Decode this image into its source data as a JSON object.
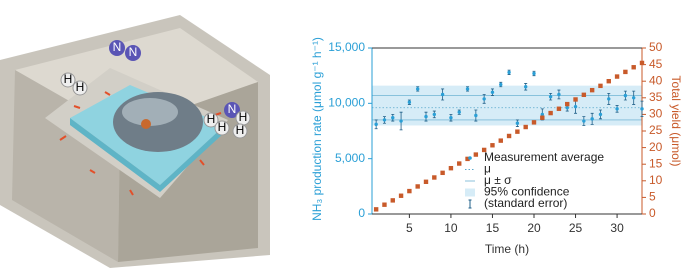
{
  "illustration": {
    "n2_labels": [
      "N",
      "N"
    ],
    "h2_left_labels": [
      "H",
      "H"
    ],
    "h2_right_labels": [
      "H",
      "H"
    ],
    "nh3_labels": [
      "N",
      "H",
      "H"
    ]
  },
  "chart_data": {
    "type": "scatter",
    "y_label": "NH₃ production rate (μmol g⁻¹ h⁻¹)",
    "y2_label": "Total yield (μmol)",
    "x_label": "Time (h)",
    "x": [
      1,
      2,
      3,
      4,
      5,
      6,
      7,
      8,
      9,
      10,
      11,
      12,
      13,
      14,
      15,
      16,
      17,
      18,
      19,
      20,
      21,
      22,
      23,
      24,
      25,
      26,
      27,
      28,
      29,
      30,
      31,
      32,
      33
    ],
    "xlim": [
      0.5,
      33
    ],
    "xticks": [
      5,
      10,
      15,
      20,
      25,
      30
    ],
    "ylim": [
      0,
      15000
    ],
    "yticks": [
      0,
      {
        "value": 5000,
        "label": "5,000"
      },
      {
        "value": 10000,
        "label": "10,000"
      },
      {
        "value": 15000,
        "label": "15,000"
      }
    ],
    "y2lim": [
      0,
      50
    ],
    "y2ticks": [
      0,
      5,
      10,
      15,
      20,
      25,
      30,
      35,
      40,
      45,
      50
    ],
    "series": [
      {
        "name": "Measurement average",
        "color": "#2a9fd6",
        "values": [
          8100,
          8500,
          8700,
          8400,
          10100,
          11300,
          8800,
          9000,
          10800,
          8700,
          9200,
          11300,
          8900,
          10400,
          11000,
          11700,
          12800,
          8200,
          11500,
          12700,
          9000,
          10600,
          10800,
          9600,
          9700,
          8400,
          8600,
          9000,
          10400,
          9500,
          10700,
          10500,
          9500
        ],
        "errors": [
          400,
          300,
          300,
          800,
          200,
          200,
          400,
          300,
          500,
          300,
          200,
          200,
          500,
          400,
          300,
          200,
          200,
          300,
          300,
          200,
          500,
          300,
          400,
          300,
          600,
          400,
          500,
          400,
          500,
          300,
          400,
          600,
          700
        ],
        "error_label": "(standard error)"
      },
      {
        "axis": "y2",
        "color": "#c85a2a",
        "values": [
          1.4,
          2.8,
          4.1,
          5.5,
          6.9,
          8.3,
          9.7,
          11.0,
          12.4,
          13.8,
          15.2,
          16.6,
          17.9,
          19.3,
          20.7,
          22.1,
          23.5,
          24.8,
          26.2,
          27.6,
          29.0,
          30.4,
          31.7,
          33.1,
          34.5,
          35.9,
          37.3,
          38.6,
          40.0,
          41.4,
          42.8,
          44.2,
          45.5
        ]
      }
    ],
    "mu": {
      "label": "μ",
      "value": 9600
    },
    "sigma": {
      "label": "μ ± σ",
      "values": [
        8500,
        10700
      ]
    },
    "confidence": {
      "label": "95% confidence",
      "values": [
        8000,
        11600
      ],
      "color": "#d6ecf7"
    },
    "y_color": "#2a9fd6",
    "y2_color": "#c85a2a"
  }
}
